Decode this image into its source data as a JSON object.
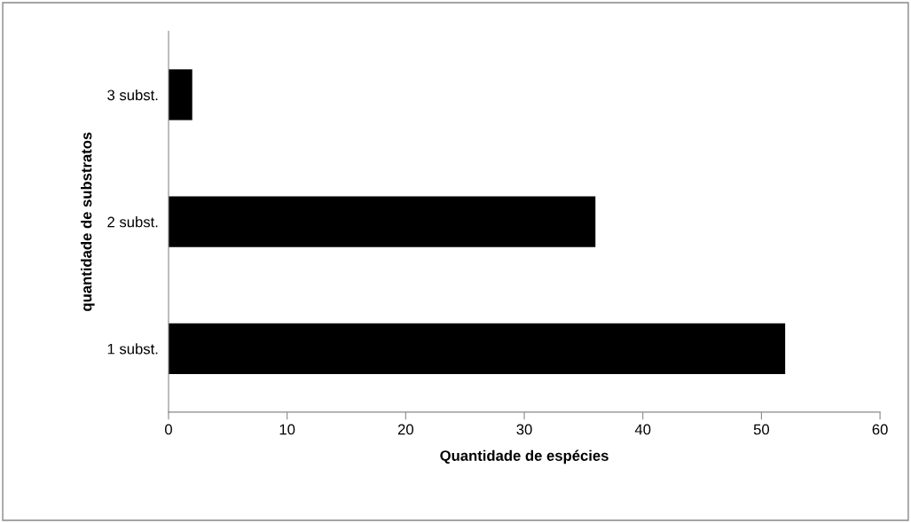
{
  "chart_data": {
    "type": "bar",
    "orientation": "horizontal",
    "categories": [
      "3 subst.",
      "2 subst.",
      "1 subst."
    ],
    "values": [
      2,
      36,
      52
    ],
    "color": "#000000",
    "xlabel": "Quantidade de espécies",
    "ylabel": "quantidade de substratos",
    "xlim": [
      0,
      60
    ],
    "xticks": [
      0,
      10,
      20,
      30,
      40,
      50,
      60
    ],
    "grid": false,
    "legend": false
  }
}
